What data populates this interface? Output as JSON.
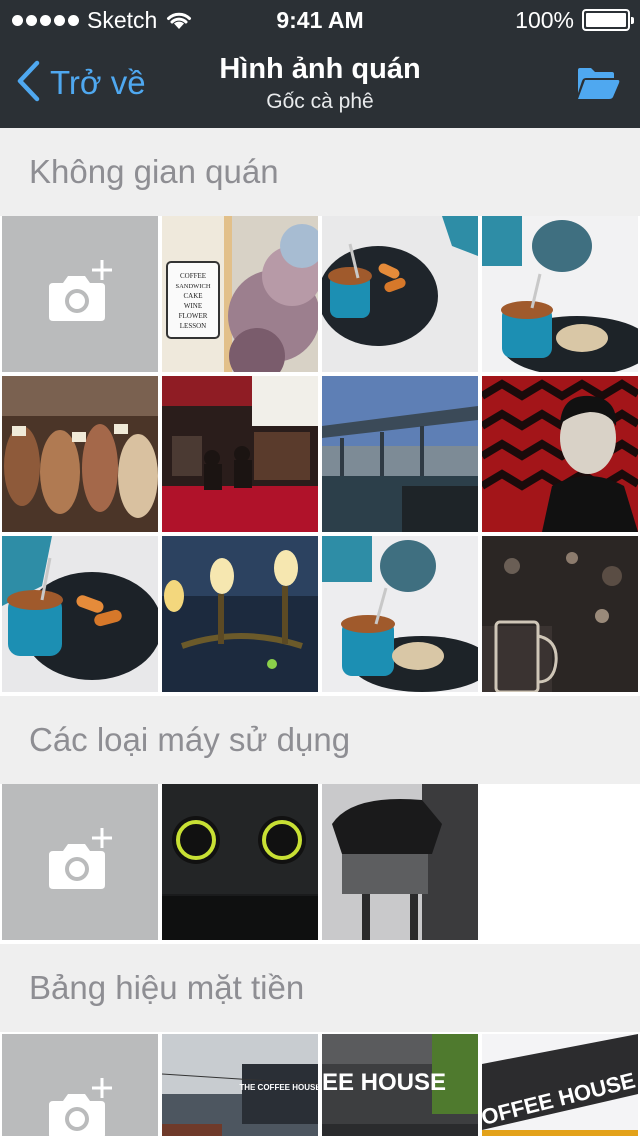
{
  "status_bar": {
    "carrier": "Sketch",
    "time": "9:41 AM",
    "battery": "100%"
  },
  "nav": {
    "back_label": "Trở về",
    "title": "Hình ảnh quán",
    "subtitle": "Gốc cà phê",
    "back_icon": "chevron-left-icon",
    "right_icon": "folder-open-icon",
    "accent_color": "#4fa8f0",
    "background_color": "#2b3035"
  },
  "sections": [
    {
      "title": "Không gian quán",
      "add_icon": "camera-add-icon"
    },
    {
      "title": "Các loại máy sử dụng",
      "add_icon": "camera-add-icon"
    },
    {
      "title": "Bảng hiệu mặt tiền",
      "add_icon": "camera-add-icon"
    }
  ],
  "signs": {
    "menu_board": [
      "COFFEE",
      "SANDWICH",
      "CAKE",
      "WINE",
      "FLOWER",
      "LESSON"
    ],
    "storefront_1": "THE COFFEE HOUSE",
    "storefront_2": "EE HOUSE",
    "storefront_3": "OFFEE HOUSE"
  }
}
